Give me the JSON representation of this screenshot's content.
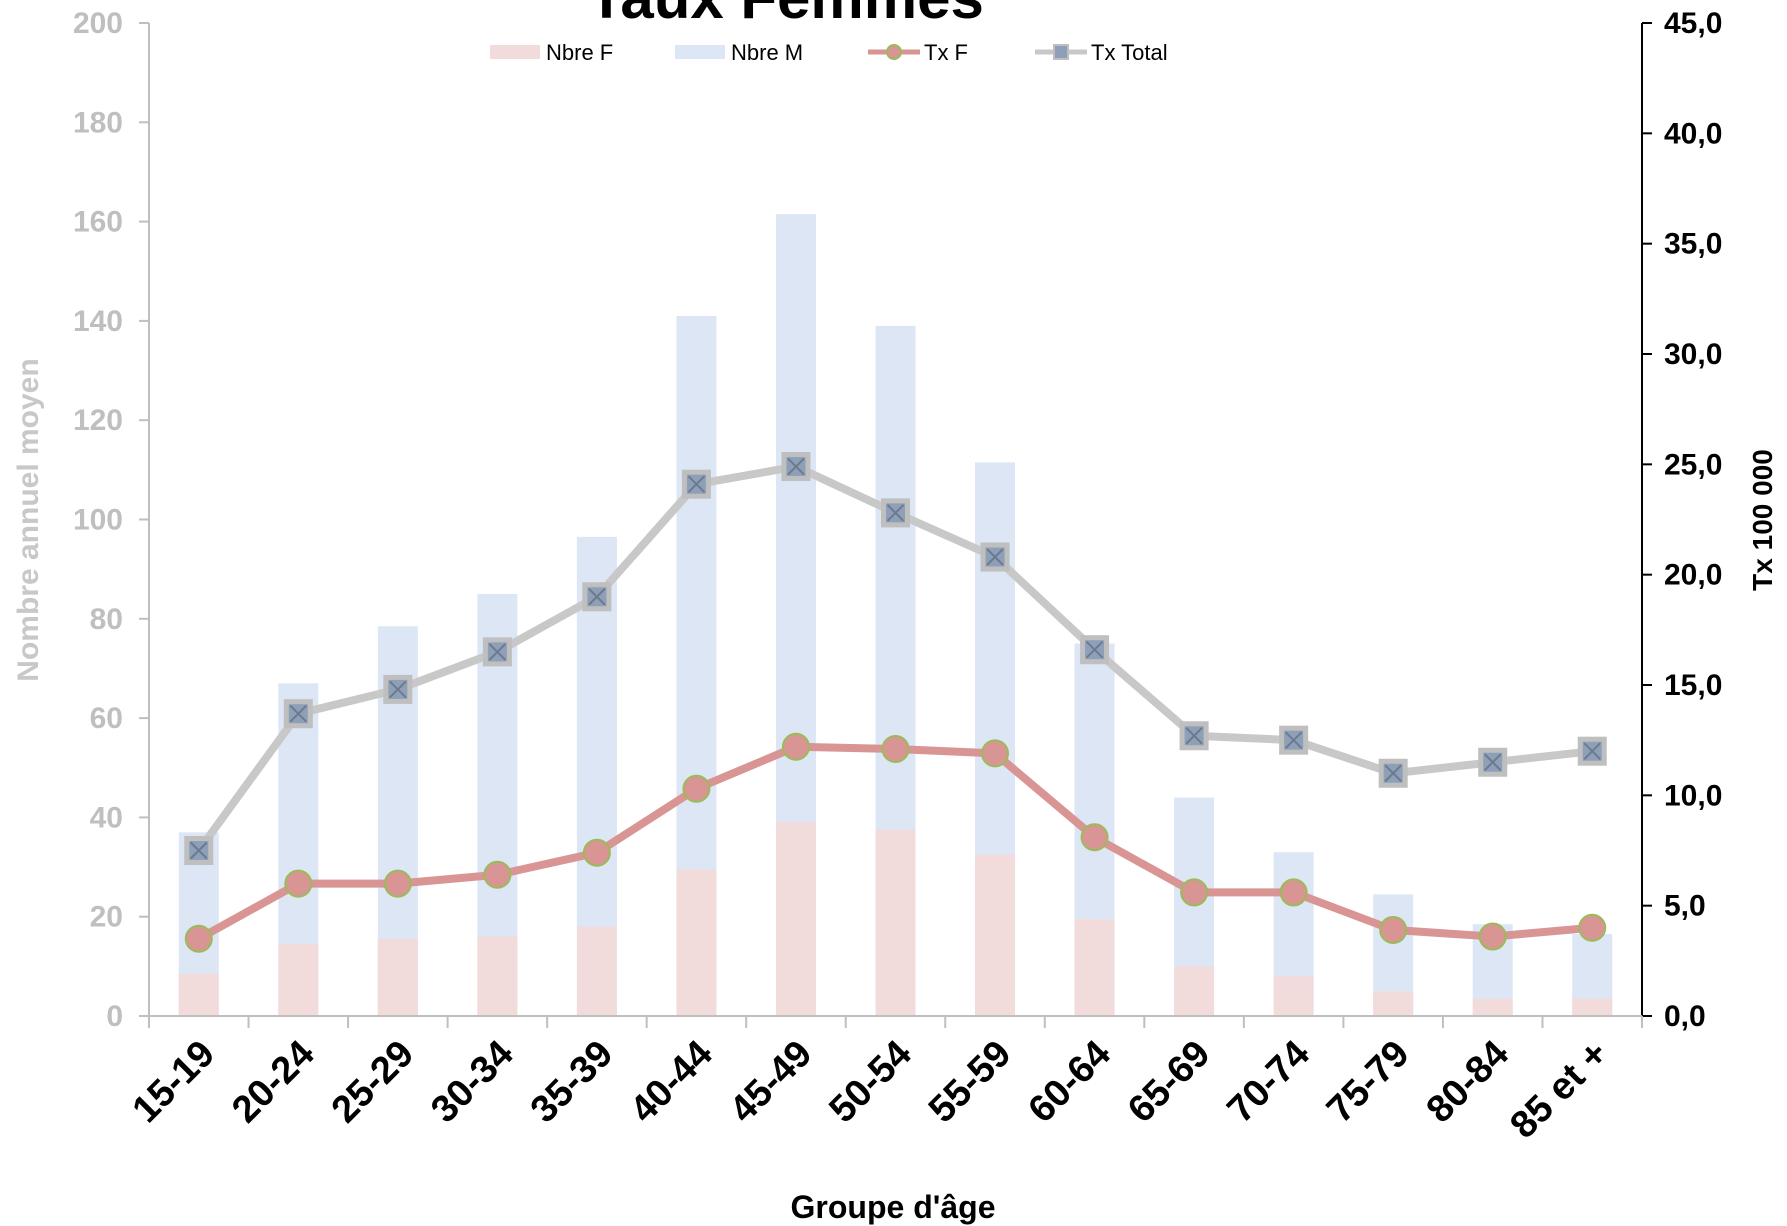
{
  "chart_data": {
    "type": "bar",
    "title": "Taux Femmes",
    "xlabel": "Groupe d'âge",
    "ylabel": "Nombre annuel moyen",
    "y2label": "Tx 100 000",
    "categories": [
      "15-19",
      "20-24",
      "25-29",
      "30-34",
      "35-39",
      "40-44",
      "45-49",
      "50-54",
      "55-59",
      "60-64",
      "65-69",
      "70-74",
      "75-79",
      "80-84",
      "85 et +"
    ],
    "ylim": [
      0,
      200
    ],
    "yticks": [
      0,
      20,
      40,
      60,
      80,
      100,
      120,
      140,
      160,
      180,
      200
    ],
    "y2lim": [
      0,
      45
    ],
    "y2ticks": [
      "0,0",
      "5,0",
      "10,0",
      "15,0",
      "20,0",
      "25,0",
      "30,0",
      "35,0",
      "40,0",
      "45,0"
    ],
    "legend_position": "top",
    "grid": false,
    "series": [
      {
        "name": "Nbre F",
        "kind": "bar",
        "axis": "left",
        "color": "#f2dcdb",
        "values": [
          8.5,
          14.5,
          15.5,
          16.0,
          18.0,
          29.5,
          39.0,
          37.5,
          32.5,
          19.5,
          10.0,
          8.0,
          5.0,
          3.5,
          3.5
        ]
      },
      {
        "name": "Nbre M",
        "kind": "bar",
        "axis": "left",
        "color": "#dce6f5",
        "values": [
          37,
          67,
          78.5,
          85,
          96.5,
          141,
          161.5,
          139,
          111.5,
          75,
          44,
          33,
          24.5,
          18.5,
          16.5
        ]
      },
      {
        "name": "Tx F",
        "kind": "line",
        "axis": "right",
        "color": "#d99594",
        "marker": "circle",
        "marker_edge": "#9bbb59",
        "values": [
          3.5,
          6.0,
          6.0,
          6.4,
          7.4,
          10.3,
          12.2,
          12.1,
          11.9,
          8.1,
          5.6,
          5.6,
          3.9,
          3.6,
          4.0
        ]
      },
      {
        "name": "Tx Total",
        "kind": "line",
        "axis": "right",
        "color": "#c8c8c8",
        "marker": "square",
        "values": [
          7.5,
          13.7,
          14.8,
          16.5,
          19.0,
          24.1,
          24.9,
          22.8,
          20.8,
          16.6,
          12.7,
          12.5,
          11.0,
          11.5,
          12.0
        ]
      }
    ]
  }
}
